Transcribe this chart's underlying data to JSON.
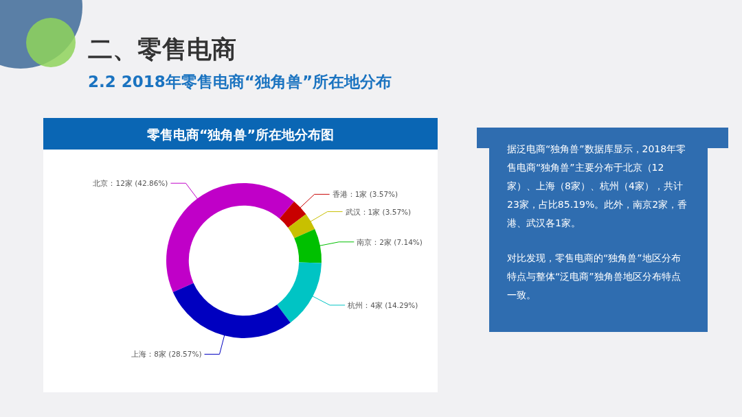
{
  "chart_data": {
    "type": "donut",
    "title": "零售电商“独角兽”所在地分布图",
    "categories": [
      "北京：12家 (42.86%)",
      "香港：1家 (3.57%)",
      "武汉：1家 (3.57%)",
      "南京：2家 (7.14%)",
      "杭州：4家 (14.29%)",
      "上海：8家 (28.57%)"
    ],
    "values": [
      12,
      1,
      1,
      2,
      4,
      8
    ],
    "colors": [
      "#c000c8",
      "#c80000",
      "#c8c000",
      "#00c000",
      "#00c4c4",
      "#0000c0"
    ],
    "annotations": [
      "二、零售电商",
      "2.2 2018年零售电商“独角兽”所在地分布",
      "据泛电商“独角兽”数据库显示，2018年零售电商“独角兽”主要分布于北京（12家）、上海（8家）、杭州（4家），共计23家，占比85.19%。此外，南京2家，香港、武汉各1家。",
      "对比发现，零售电商的“独角兽”地区分布特点与整体“泛电商”独角兽地区分布特点一致。"
    ]
  }
}
